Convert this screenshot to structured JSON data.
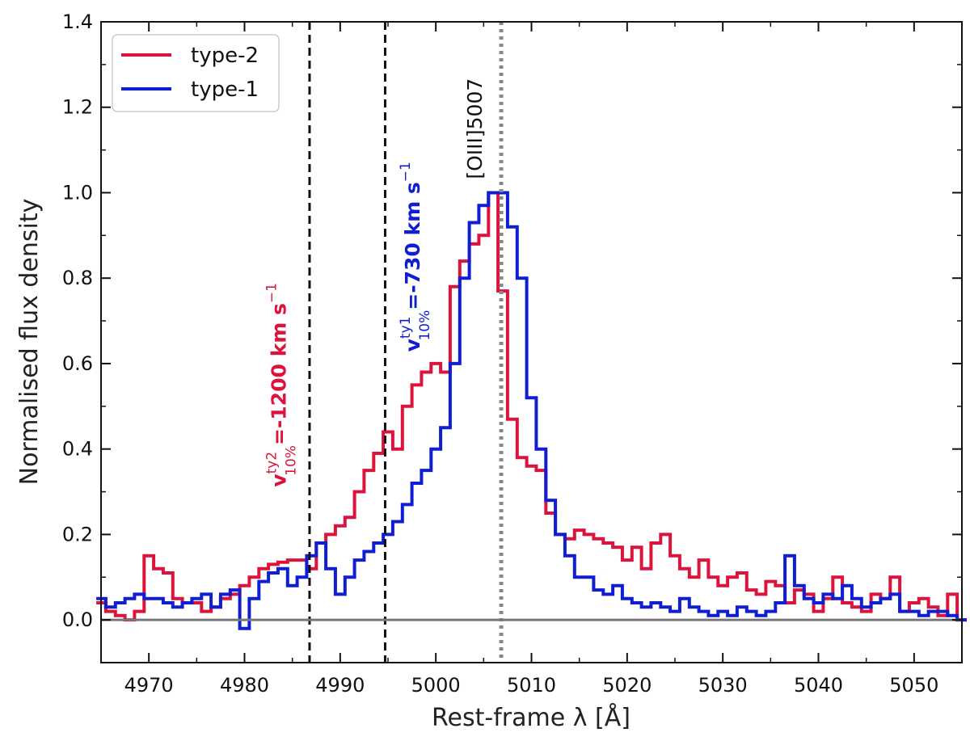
{
  "chart_data": {
    "type": "line",
    "title": "",
    "xlabel": "Rest-frame λ [Å]",
    "ylabel": "Normalised flux density",
    "xlim": [
      4965,
      5055
    ],
    "ylim": [
      -0.1,
      1.4
    ],
    "xticks": [
      "4970",
      "4980",
      "4990",
      "5000",
      "5010",
      "5020",
      "5030",
      "5040",
      "5050"
    ],
    "yticks": [
      "0.0",
      "0.2",
      "0.4",
      "0.6",
      "0.8",
      "1.0",
      "1.2",
      "1.4"
    ],
    "grid": false,
    "legend_position": "top-left",
    "series": [
      {
        "name": "type-2",
        "color": "#dc143c",
        "step": true,
        "x": [
          4965,
          4966,
          4967,
          4968,
          4969,
          4970,
          4971,
          4972,
          4973,
          4974,
          4975,
          4976,
          4977,
          4978,
          4979,
          4980,
          4981,
          4982,
          4983,
          4984,
          4985,
          4986,
          4987,
          4988,
          4989,
          4990,
          4991,
          4992,
          4993,
          4994,
          4995,
          4996,
          4997,
          4998,
          4999,
          5000,
          5001,
          5002,
          5003,
          5004,
          5005,
          5006,
          5007,
          5008,
          5009,
          5010,
          5011,
          5012,
          5013,
          5014,
          5015,
          5016,
          5017,
          5018,
          5019,
          5020,
          5021,
          5022,
          5023,
          5024,
          5025,
          5026,
          5027,
          5028,
          5029,
          5030,
          5031,
          5032,
          5033,
          5034,
          5035,
          5036,
          5037,
          5038,
          5039,
          5040,
          5041,
          5042,
          5043,
          5044,
          5045,
          5046,
          5047,
          5048,
          5049,
          5050,
          5051,
          5052,
          5053,
          5054,
          5055
        ],
        "y": [
          0.04,
          0.02,
          0.01,
          0.0,
          0.02,
          0.15,
          0.12,
          0.11,
          0.05,
          0.04,
          0.04,
          0.02,
          0.03,
          0.05,
          0.06,
          0.08,
          0.1,
          0.12,
          0.13,
          0.135,
          0.14,
          0.14,
          0.12,
          0.18,
          0.2,
          0.22,
          0.24,
          0.3,
          0.35,
          0.39,
          0.44,
          0.4,
          0.5,
          0.55,
          0.58,
          0.6,
          0.58,
          0.78,
          0.84,
          0.88,
          0.9,
          1.0,
          0.77,
          0.47,
          0.38,
          0.36,
          0.35,
          0.25,
          0.2,
          0.19,
          0.21,
          0.2,
          0.19,
          0.18,
          0.17,
          0.14,
          0.17,
          0.12,
          0.18,
          0.2,
          0.15,
          0.12,
          0.1,
          0.14,
          0.1,
          0.08,
          0.1,
          0.11,
          0.07,
          0.06,
          0.09,
          0.08,
          0.04,
          0.07,
          0.06,
          0.02,
          0.05,
          0.1,
          0.04,
          0.03,
          0.02,
          0.06,
          0.05,
          0.1,
          0.02,
          0.04,
          0.05,
          0.03,
          0.01,
          0.06,
          0.0
        ]
      },
      {
        "name": "type-1",
        "color": "#0f1ed2",
        "step": true,
        "x": [
          4965,
          4966,
          4967,
          4968,
          4969,
          4970,
          4971,
          4972,
          4973,
          4974,
          4975,
          4976,
          4977,
          4978,
          4979,
          4980,
          4981,
          4982,
          4983,
          4984,
          4985,
          4986,
          4987,
          4988,
          4989,
          4990,
          4991,
          4992,
          4993,
          4994,
          4995,
          4996,
          4997,
          4998,
          4999,
          5000,
          5001,
          5002,
          5003,
          5004,
          5005,
          5006,
          5007,
          5008,
          5009,
          5010,
          5011,
          5012,
          5013,
          5014,
          5015,
          5016,
          5017,
          5018,
          5019,
          5020,
          5021,
          5022,
          5023,
          5024,
          5025,
          5026,
          5027,
          5028,
          5029,
          5030,
          5031,
          5032,
          5033,
          5034,
          5035,
          5036,
          5037,
          5038,
          5039,
          5040,
          5041,
          5042,
          5043,
          5044,
          5045,
          5046,
          5047,
          5048,
          5049,
          5050,
          5051,
          5052,
          5053,
          5054,
          5055
        ],
        "y": [
          0.05,
          0.03,
          0.04,
          0.05,
          0.06,
          0.05,
          0.05,
          0.04,
          0.03,
          0.04,
          0.05,
          0.06,
          0.03,
          0.06,
          0.07,
          -0.02,
          0.05,
          0.09,
          0.11,
          0.12,
          0.08,
          0.1,
          0.15,
          0.18,
          0.12,
          0.06,
          0.1,
          0.14,
          0.16,
          0.18,
          0.2,
          0.23,
          0.27,
          0.32,
          0.35,
          0.4,
          0.45,
          0.6,
          0.8,
          0.93,
          0.97,
          1.0,
          1.0,
          0.92,
          0.8,
          0.52,
          0.4,
          0.28,
          0.2,
          0.15,
          0.1,
          0.1,
          0.07,
          0.06,
          0.08,
          0.05,
          0.04,
          0.03,
          0.04,
          0.03,
          0.02,
          0.05,
          0.03,
          0.02,
          0.01,
          0.02,
          0.01,
          0.03,
          0.02,
          0.01,
          0.02,
          0.04,
          0.15,
          0.08,
          0.05,
          0.04,
          0.06,
          0.05,
          0.08,
          0.05,
          0.03,
          0.04,
          0.05,
          0.06,
          0.02,
          0.02,
          0.01,
          0.02,
          0.02,
          0.01,
          0.0
        ]
      }
    ],
    "reference_lines": [
      {
        "x": 4986.8,
        "style": "dashed",
        "color": "#111111"
      },
      {
        "x": 4994.7,
        "style": "dashed",
        "color": "#111111"
      },
      {
        "x": 5006.84,
        "style": "dotted",
        "color": "#888888"
      },
      {
        "y": 0.0,
        "style": "solid",
        "color": "#777777"
      }
    ],
    "annotations": [
      {
        "id": "ty2",
        "base": "v",
        "sup": "ty2",
        "sub": "10%",
        "value": "=-1200 km s",
        "exp": "−1",
        "color": "#dc143c",
        "x": 4984.3,
        "y": 0.55
      },
      {
        "id": "ty1",
        "base": "v",
        "sup": "ty1",
        "sub": "10%",
        "value": "=-730 km s",
        "exp": "−1",
        "color": "#0f1ed2",
        "x": 4998.3,
        "y": 0.85
      },
      {
        "id": "oiii",
        "label": "[OIII]5007",
        "color": "#111111",
        "x": 5004.8,
        "y": 1.15
      }
    ]
  }
}
